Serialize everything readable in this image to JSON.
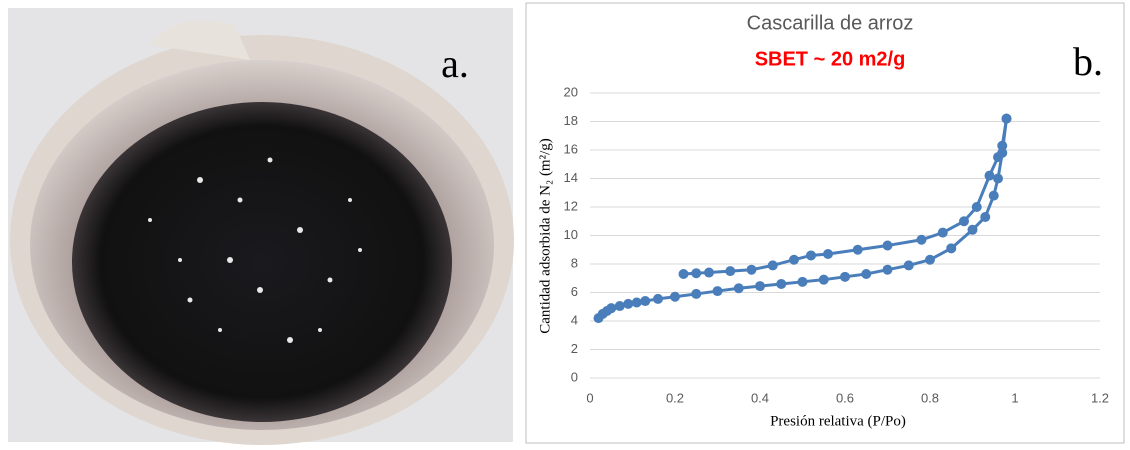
{
  "panel_labels": [
    "a.",
    "b."
  ],
  "chart_data": {
    "type": "line",
    "title": "Cascarilla de arroz",
    "subtitle": "SBET ~ 20 m2/g",
    "x_label": "Presión relativa (P/Po)",
    "y_label": "Cantidad adsorbida de N₂ (m²/g)",
    "xlim": [
      0,
      1.2
    ],
    "xticks": [
      0,
      0.2,
      0.4,
      0.6,
      0.8,
      1,
      1.2
    ],
    "ylim": [
      0,
      20
    ],
    "yticks": [
      0,
      2,
      4,
      6,
      8,
      10,
      12,
      14,
      16,
      18,
      20
    ],
    "grid": true,
    "series": [
      {
        "color": "#4a7ebb",
        "x": [
          0.02,
          0.03,
          0.04,
          0.05,
          0.07,
          0.09,
          0.11,
          0.13,
          0.16,
          0.2,
          0.25,
          0.3,
          0.35,
          0.4,
          0.45,
          0.5,
          0.55,
          0.6,
          0.65,
          0.7,
          0.75,
          0.8,
          0.85,
          0.9,
          0.93,
          0.95,
          0.96,
          0.97,
          0.98
        ],
        "values": [
          4.2,
          4.5,
          4.7,
          4.9,
          5.05,
          5.2,
          5.3,
          5.4,
          5.55,
          5.7,
          5.9,
          6.1,
          6.3,
          6.45,
          6.6,
          6.75,
          6.9,
          7.1,
          7.3,
          7.6,
          7.9,
          8.3,
          9.1,
          10.4,
          11.3,
          12.8,
          14.0,
          15.8,
          18.2
        ]
      },
      {
        "color": "#4a7ebb",
        "x": [
          0.98,
          0.97,
          0.96,
          0.94,
          0.91,
          0.88,
          0.83,
          0.78,
          0.7,
          0.63,
          0.56,
          0.52,
          0.48,
          0.43,
          0.38,
          0.33,
          0.28,
          0.25,
          0.22
        ],
        "values": [
          18.2,
          16.3,
          15.5,
          14.2,
          12.0,
          11.0,
          10.2,
          9.7,
          9.3,
          9.0,
          8.7,
          8.6,
          8.3,
          7.9,
          7.6,
          7.5,
          7.4,
          7.35,
          7.3
        ]
      }
    ]
  }
}
